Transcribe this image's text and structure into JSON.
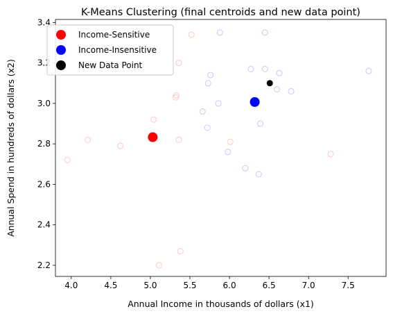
{
  "chart_data": {
    "type": "scatter",
    "title": "K-Means Clustering (final centroids and new data point)",
    "xlabel": "Annual Income in thousands of dollars (x1)",
    "ylabel": "Annual Spend in hundreds of dollars (x2)",
    "xlim": [
      3.8,
      7.98
    ],
    "ylim": [
      2.145,
      3.415
    ],
    "xticks": [
      4.0,
      4.5,
      5.0,
      5.5,
      6.0,
      6.5,
      7.0,
      7.5
    ],
    "yticks": [
      2.2,
      2.4,
      2.6,
      2.8,
      3.0,
      3.2,
      3.4
    ],
    "xtick_labels": [
      "4.0",
      "4.5",
      "5.0",
      "5.5",
      "6.0",
      "6.5",
      "7.0",
      "7.5"
    ],
    "ytick_labels": [
      "2.2",
      "2.4",
      "2.6",
      "2.8",
      "3.0",
      "3.2",
      "3.4"
    ],
    "grid": false,
    "legend_position": "upper-left",
    "legend": [
      {
        "label": "Income-Sensitive",
        "color": "#ff0000"
      },
      {
        "label": "Income-Insensitive",
        "color": "#0000ff"
      },
      {
        "label": "New Data Point",
        "color": "#000000"
      }
    ],
    "clusters": [
      {
        "color": "#ff0000",
        "points": [
          {
            "x": 3.95,
            "y": 2.72
          },
          {
            "x": 4.21,
            "y": 2.82
          },
          {
            "x": 4.62,
            "y": 2.79
          },
          {
            "x": 5.04,
            "y": 2.92
          },
          {
            "x": 5.11,
            "y": 2.2
          },
          {
            "x": 5.32,
            "y": 3.03
          },
          {
            "x": 5.33,
            "y": 3.04
          },
          {
            "x": 5.36,
            "y": 2.82
          },
          {
            "x": 5.36,
            "y": 3.2
          },
          {
            "x": 5.38,
            "y": 2.27
          },
          {
            "x": 5.52,
            "y": 3.34
          },
          {
            "x": 6.01,
            "y": 2.81
          },
          {
            "x": 7.28,
            "y": 2.75
          }
        ]
      },
      {
        "color": "#0000ff",
        "points": [
          {
            "x": 5.66,
            "y": 2.96
          },
          {
            "x": 5.72,
            "y": 2.88
          },
          {
            "x": 5.73,
            "y": 3.1
          },
          {
            "x": 5.76,
            "y": 3.14
          },
          {
            "x": 5.86,
            "y": 3.0
          },
          {
            "x": 5.88,
            "y": 3.35
          },
          {
            "x": 5.98,
            "y": 2.76
          },
          {
            "x": 6.2,
            "y": 2.68
          },
          {
            "x": 6.27,
            "y": 3.17
          },
          {
            "x": 6.37,
            "y": 2.65
          },
          {
            "x": 6.39,
            "y": 2.9
          },
          {
            "x": 6.45,
            "y": 3.35
          },
          {
            "x": 6.45,
            "y": 3.17
          },
          {
            "x": 6.6,
            "y": 3.07
          },
          {
            "x": 6.63,
            "y": 3.15
          },
          {
            "x": 6.78,
            "y": 3.06
          },
          {
            "x": 7.76,
            "y": 3.16
          }
        ]
      }
    ],
    "centroids": [
      {
        "name": "Income-Sensitive",
        "x": 5.03,
        "y": 2.833,
        "color": "#ff0000"
      },
      {
        "name": "Income-Insensitive",
        "x": 6.32,
        "y": 3.007,
        "color": "#0000ff"
      }
    ],
    "new_point": {
      "name": "New Data Point",
      "x": 6.51,
      "y": 3.1,
      "color": "#000000"
    }
  }
}
